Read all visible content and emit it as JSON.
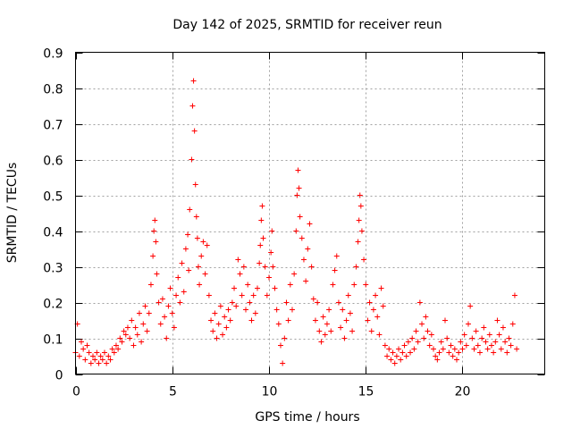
{
  "chart_data": {
    "type": "scatter",
    "title": "Day 142 of 2025, SRMTID for receiver reun",
    "xlabel": "GPS time / hours",
    "ylabel": "SRMTID / TECUs",
    "xlim": [
      0,
      24.25
    ],
    "ylim": [
      0,
      0.9
    ],
    "xticks": [
      0,
      5,
      10,
      15,
      20
    ],
    "yticks": [
      0,
      0.1,
      0.2,
      0.3,
      0.4,
      0.5,
      0.6,
      0.7,
      0.8,
      0.9
    ],
    "xtick_labels": [
      "0",
      "5",
      "10",
      "15",
      "20"
    ],
    "ytick_labels": [
      "0",
      "0.1",
      "0.2",
      "0.3",
      "0.4",
      "0.5",
      "0.6",
      "0.7",
      "0.8",
      "0.9"
    ],
    "grid": true,
    "marker": "plus",
    "color": "#ff0000",
    "series": [
      {
        "name": "SRMTID",
        "points": [
          [
            0.0,
            0.06
          ],
          [
            0.1,
            0.14
          ],
          [
            0.2,
            0.05
          ],
          [
            0.3,
            0.09
          ],
          [
            0.4,
            0.07
          ],
          [
            0.5,
            0.04
          ],
          [
            0.6,
            0.08
          ],
          [
            0.7,
            0.06
          ],
          [
            0.8,
            0.03
          ],
          [
            0.9,
            0.05
          ],
          [
            1.0,
            0.04
          ],
          [
            1.1,
            0.06
          ],
          [
            1.2,
            0.03
          ],
          [
            1.3,
            0.05
          ],
          [
            1.4,
            0.04
          ],
          [
            1.5,
            0.06
          ],
          [
            1.6,
            0.03
          ],
          [
            1.7,
            0.05
          ],
          [
            1.8,
            0.04
          ],
          [
            1.9,
            0.07
          ],
          [
            2.0,
            0.06
          ],
          [
            2.1,
            0.08
          ],
          [
            2.2,
            0.07
          ],
          [
            2.3,
            0.1
          ],
          [
            2.4,
            0.09
          ],
          [
            2.5,
            0.12
          ],
          [
            2.6,
            0.11
          ],
          [
            2.7,
            0.13
          ],
          [
            2.8,
            0.1
          ],
          [
            2.9,
            0.15
          ],
          [
            3.0,
            0.08
          ],
          [
            3.1,
            0.13
          ],
          [
            3.2,
            0.11
          ],
          [
            3.3,
            0.17
          ],
          [
            3.4,
            0.09
          ],
          [
            3.5,
            0.14
          ],
          [
            3.6,
            0.19
          ],
          [
            3.7,
            0.12
          ],
          [
            3.8,
            0.17
          ],
          [
            3.9,
            0.25
          ],
          [
            4.0,
            0.33
          ],
          [
            4.05,
            0.4
          ],
          [
            4.1,
            0.43
          ],
          [
            4.15,
            0.37
          ],
          [
            4.2,
            0.28
          ],
          [
            4.3,
            0.2
          ],
          [
            4.4,
            0.14
          ],
          [
            4.5,
            0.21
          ],
          [
            4.6,
            0.16
          ],
          [
            4.7,
            0.1
          ],
          [
            4.8,
            0.19
          ],
          [
            4.9,
            0.24
          ],
          [
            5.0,
            0.17
          ],
          [
            5.1,
            0.13
          ],
          [
            5.2,
            0.22
          ],
          [
            5.3,
            0.27
          ],
          [
            5.4,
            0.2
          ],
          [
            5.5,
            0.31
          ],
          [
            5.6,
            0.23
          ],
          [
            5.7,
            0.35
          ],
          [
            5.8,
            0.39
          ],
          [
            5.85,
            0.29
          ],
          [
            5.9,
            0.46
          ],
          [
            6.0,
            0.6
          ],
          [
            6.05,
            0.75
          ],
          [
            6.1,
            0.82
          ],
          [
            6.15,
            0.68
          ],
          [
            6.2,
            0.53
          ],
          [
            6.25,
            0.44
          ],
          [
            6.3,
            0.38
          ],
          [
            6.35,
            0.3
          ],
          [
            6.4,
            0.25
          ],
          [
            6.5,
            0.33
          ],
          [
            6.6,
            0.37
          ],
          [
            6.7,
            0.28
          ],
          [
            6.8,
            0.36
          ],
          [
            6.9,
            0.22
          ],
          [
            7.0,
            0.15
          ],
          [
            7.1,
            0.12
          ],
          [
            7.2,
            0.17
          ],
          [
            7.3,
            0.1
          ],
          [
            7.4,
            0.14
          ],
          [
            7.5,
            0.19
          ],
          [
            7.6,
            0.11
          ],
          [
            7.7,
            0.16
          ],
          [
            7.8,
            0.13
          ],
          [
            7.9,
            0.18
          ],
          [
            8.0,
            0.15
          ],
          [
            8.1,
            0.2
          ],
          [
            8.2,
            0.24
          ],
          [
            8.3,
            0.19
          ],
          [
            8.4,
            0.32
          ],
          [
            8.5,
            0.28
          ],
          [
            8.6,
            0.22
          ],
          [
            8.7,
            0.3
          ],
          [
            8.8,
            0.18
          ],
          [
            8.9,
            0.25
          ],
          [
            9.0,
            0.2
          ],
          [
            9.1,
            0.15
          ],
          [
            9.2,
            0.22
          ],
          [
            9.3,
            0.17
          ],
          [
            9.4,
            0.24
          ],
          [
            9.5,
            0.31
          ],
          [
            9.55,
            0.36
          ],
          [
            9.6,
            0.43
          ],
          [
            9.65,
            0.47
          ],
          [
            9.7,
            0.38
          ],
          [
            9.8,
            0.3
          ],
          [
            9.9,
            0.22
          ],
          [
            10.0,
            0.27
          ],
          [
            10.1,
            0.34
          ],
          [
            10.15,
            0.4
          ],
          [
            10.2,
            0.3
          ],
          [
            10.3,
            0.24
          ],
          [
            10.4,
            0.18
          ],
          [
            10.5,
            0.14
          ],
          [
            10.6,
            0.08
          ],
          [
            10.7,
            0.03
          ],
          [
            10.8,
            0.1
          ],
          [
            10.9,
            0.2
          ],
          [
            11.0,
            0.15
          ],
          [
            11.1,
            0.25
          ],
          [
            11.2,
            0.18
          ],
          [
            11.3,
            0.28
          ],
          [
            11.4,
            0.4
          ],
          [
            11.45,
            0.5
          ],
          [
            11.5,
            0.57
          ],
          [
            11.55,
            0.52
          ],
          [
            11.6,
            0.44
          ],
          [
            11.7,
            0.38
          ],
          [
            11.8,
            0.32
          ],
          [
            11.9,
            0.26
          ],
          [
            12.0,
            0.35
          ],
          [
            12.1,
            0.42
          ],
          [
            12.2,
            0.3
          ],
          [
            12.3,
            0.21
          ],
          [
            12.4,
            0.15
          ],
          [
            12.5,
            0.2
          ],
          [
            12.6,
            0.12
          ],
          [
            12.7,
            0.09
          ],
          [
            12.8,
            0.16
          ],
          [
            12.9,
            0.11
          ],
          [
            13.0,
            0.14
          ],
          [
            13.1,
            0.18
          ],
          [
            13.2,
            0.12
          ],
          [
            13.3,
            0.25
          ],
          [
            13.4,
            0.29
          ],
          [
            13.5,
            0.33
          ],
          [
            13.6,
            0.2
          ],
          [
            13.7,
            0.13
          ],
          [
            13.8,
            0.18
          ],
          [
            13.9,
            0.1
          ],
          [
            14.0,
            0.15
          ],
          [
            14.1,
            0.22
          ],
          [
            14.2,
            0.17
          ],
          [
            14.3,
            0.12
          ],
          [
            14.4,
            0.25
          ],
          [
            14.5,
            0.3
          ],
          [
            14.6,
            0.37
          ],
          [
            14.65,
            0.43
          ],
          [
            14.7,
            0.5
          ],
          [
            14.75,
            0.47
          ],
          [
            14.8,
            0.4
          ],
          [
            14.9,
            0.32
          ],
          [
            15.0,
            0.25
          ],
          [
            15.1,
            0.15
          ],
          [
            15.2,
            0.2
          ],
          [
            15.3,
            0.12
          ],
          [
            15.4,
            0.18
          ],
          [
            15.5,
            0.22
          ],
          [
            15.6,
            0.16
          ],
          [
            15.7,
            0.11
          ],
          [
            15.8,
            0.24
          ],
          [
            15.9,
            0.19
          ],
          [
            16.0,
            0.08
          ],
          [
            16.1,
            0.05
          ],
          [
            16.2,
            0.07
          ],
          [
            16.3,
            0.04
          ],
          [
            16.4,
            0.06
          ],
          [
            16.5,
            0.03
          ],
          [
            16.6,
            0.05
          ],
          [
            16.7,
            0.07
          ],
          [
            16.8,
            0.04
          ],
          [
            16.9,
            0.06
          ],
          [
            17.0,
            0.08
          ],
          [
            17.1,
            0.05
          ],
          [
            17.2,
            0.09
          ],
          [
            17.3,
            0.06
          ],
          [
            17.4,
            0.1
          ],
          [
            17.5,
            0.07
          ],
          [
            17.6,
            0.12
          ],
          [
            17.7,
            0.09
          ],
          [
            17.8,
            0.2
          ],
          [
            17.9,
            0.14
          ],
          [
            18.0,
            0.1
          ],
          [
            18.1,
            0.16
          ],
          [
            18.2,
            0.12
          ],
          [
            18.3,
            0.08
          ],
          [
            18.4,
            0.11
          ],
          [
            18.5,
            0.07
          ],
          [
            18.6,
            0.05
          ],
          [
            18.7,
            0.04
          ],
          [
            18.8,
            0.06
          ],
          [
            18.9,
            0.09
          ],
          [
            19.0,
            0.07
          ],
          [
            19.1,
            0.15
          ],
          [
            19.2,
            0.1
          ],
          [
            19.3,
            0.06
          ],
          [
            19.4,
            0.08
          ],
          [
            19.5,
            0.05
          ],
          [
            19.6,
            0.07
          ],
          [
            19.7,
            0.04
          ],
          [
            19.8,
            0.06
          ],
          [
            19.9,
            0.09
          ],
          [
            20.0,
            0.07
          ],
          [
            20.1,
            0.11
          ],
          [
            20.2,
            0.08
          ],
          [
            20.3,
            0.14
          ],
          [
            20.4,
            0.19
          ],
          [
            20.5,
            0.1
          ],
          [
            20.6,
            0.07
          ],
          [
            20.7,
            0.12
          ],
          [
            20.8,
            0.08
          ],
          [
            20.9,
            0.06
          ],
          [
            21.0,
            0.1
          ],
          [
            21.1,
            0.13
          ],
          [
            21.2,
            0.09
          ],
          [
            21.3,
            0.07
          ],
          [
            21.4,
            0.11
          ],
          [
            21.5,
            0.08
          ],
          [
            21.6,
            0.06
          ],
          [
            21.7,
            0.09
          ],
          [
            21.8,
            0.15
          ],
          [
            21.9,
            0.11
          ],
          [
            22.0,
            0.07
          ],
          [
            22.1,
            0.13
          ],
          [
            22.2,
            0.09
          ],
          [
            22.3,
            0.06
          ],
          [
            22.4,
            0.1
          ],
          [
            22.5,
            0.08
          ],
          [
            22.6,
            0.14
          ],
          [
            22.7,
            0.22
          ],
          [
            22.8,
            0.07
          ]
        ]
      }
    ]
  }
}
